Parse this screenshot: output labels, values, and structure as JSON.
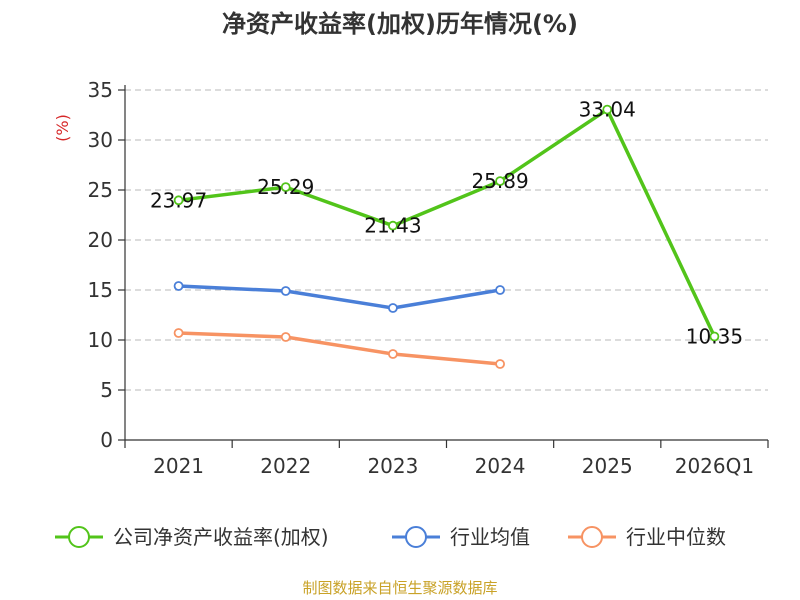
{
  "chart_data": {
    "type": "line",
    "title": "净资产收益率(加权)历年情况(%)",
    "ylabel": "(%)",
    "xlabel": "",
    "categories": [
      "2021",
      "2022",
      "2023",
      "2024",
      "2025",
      "2026Q1"
    ],
    "ylim": [
      0,
      35
    ],
    "yticks": [
      "0",
      "5",
      "10",
      "15",
      "20",
      "25",
      "30",
      "35"
    ],
    "grid": true,
    "legend_position": "bottom",
    "series": [
      {
        "name": "公司净资产收益率(加权)",
        "color": "#52c41a",
        "values": [
          23.97,
          25.29,
          21.43,
          25.89,
          33.04,
          10.35
        ],
        "labels": [
          "23.97",
          "25.29",
          "21.43",
          "25.89",
          "33.04",
          "10.35"
        ]
      },
      {
        "name": "行业均值",
        "color": "#4a7fd8",
        "values": [
          15.4,
          14.9,
          13.2,
          15.0,
          null,
          null
        ]
      },
      {
        "name": "行业中位数",
        "color": "#f79363",
        "values": [
          10.7,
          10.3,
          8.6,
          7.6,
          null,
          null
        ]
      }
    ]
  },
  "source": {
    "text": "制图数据来自恒生聚源数据库",
    "color": "#c9a227"
  },
  "ylabel_color": "#d62728"
}
